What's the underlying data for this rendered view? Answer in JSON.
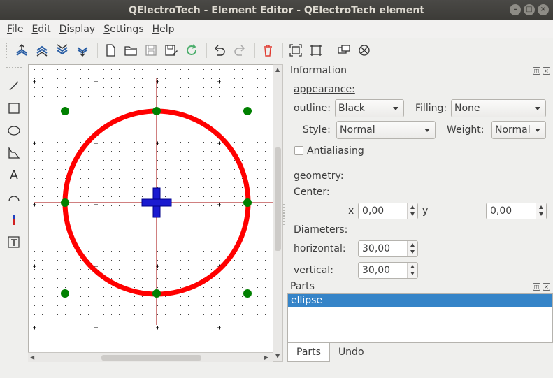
{
  "window": {
    "title": "QElectroTech - Element Editor - QElectroTech element"
  },
  "menu": [
    {
      "label": "File"
    },
    {
      "label": "Edit"
    },
    {
      "label": "Display"
    },
    {
      "label": "Settings"
    },
    {
      "label": "Help"
    }
  ],
  "toolbar": {
    "icons": [
      "bring-forward-icon",
      "raise-icon",
      "lower-icon",
      "send-backward-icon",
      "new-icon",
      "open-icon",
      "save-icon",
      "save-as-icon",
      "reload-icon",
      "undo-icon",
      "redo-icon",
      "delete-icon",
      "fit-zoom-icon",
      "zoom-reset-icon",
      "edit-info-icon",
      "edit-names-icon"
    ]
  },
  "tools": {
    "icons": [
      "line-icon",
      "rectangle-icon",
      "ellipse-icon",
      "polygon-icon",
      "text-icon",
      "arc-icon",
      "terminal-icon",
      "dynamic-text-icon"
    ],
    "text_glyph": "A"
  },
  "info_panel": {
    "title": "Information",
    "appearance_label": "appearance:",
    "outline_label": "outline:",
    "outline_value": "Black",
    "filling_label": "Filling:",
    "filling_value": "None",
    "style_label": "Style:",
    "style_value": "Normal",
    "weight_label": "Weight:",
    "weight_value": "Normal",
    "antialiasing_label": "Antialiasing",
    "antialiasing_checked": false,
    "geometry_label": "geometry:",
    "center_label": "Center:",
    "x_label": "x",
    "x_value": "0,00",
    "y_label": "y",
    "y_value": "0,00",
    "diameters_label": "Diameters:",
    "horizontal_label": "horizontal:",
    "horizontal_value": "30,00",
    "vertical_label": "vertical:",
    "vertical_value": "30,00"
  },
  "parts_panel": {
    "title": "Parts",
    "items": [
      "ellipse"
    ]
  },
  "tabs": [
    {
      "label": "Parts"
    },
    {
      "label": "Undo"
    }
  ],
  "colors": {
    "ellipse": "#ff0000",
    "handles": "#008000",
    "origin": "#0000cc",
    "axis": "#a00000",
    "selection": "#3584c8"
  }
}
